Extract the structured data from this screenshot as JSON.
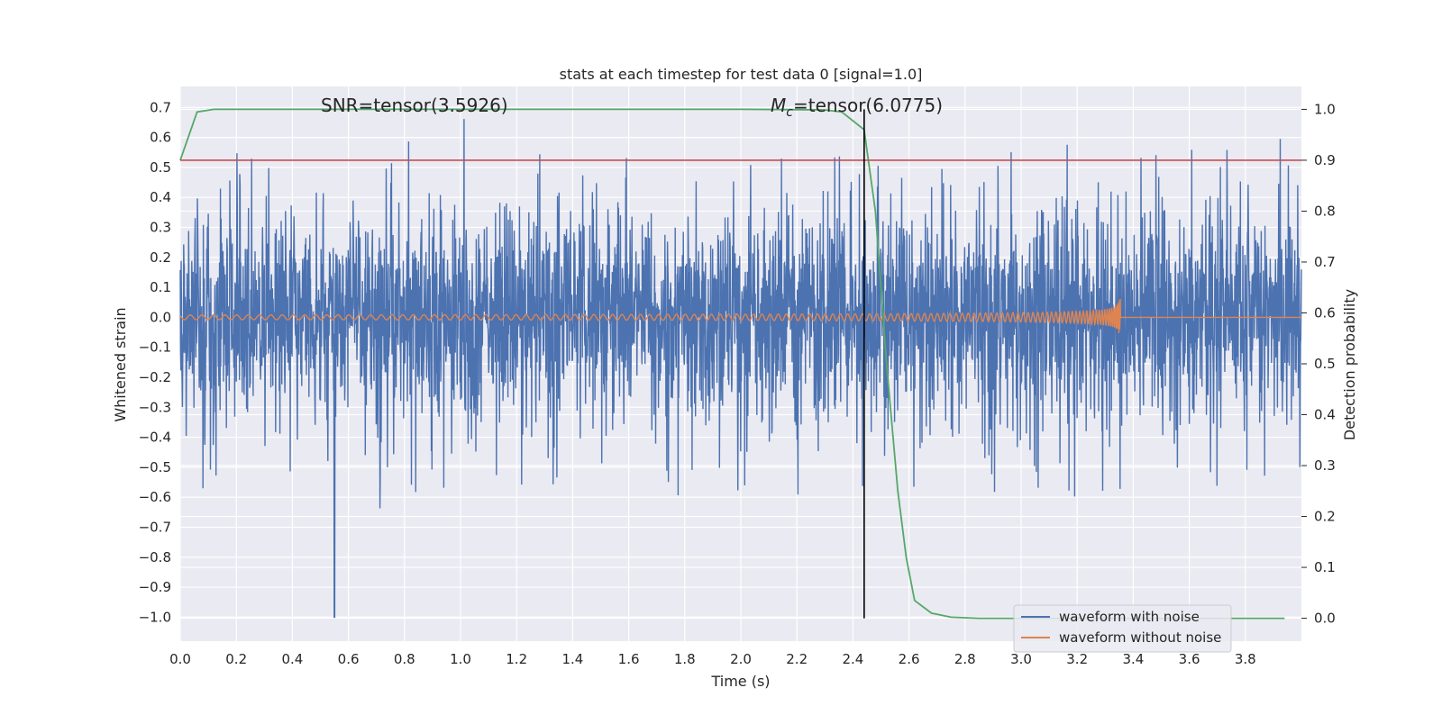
{
  "chart_data": {
    "type": "line",
    "title": "stats at each timestep for test data 0 [signal=1.0]",
    "xlabel": "Time (s)",
    "ylabel": "Whitened strain",
    "ylabel_right": "Detection probability",
    "xlim": [
      0.0,
      4.0
    ],
    "ylim": [
      -1.08,
      0.77
    ],
    "ylim_right": [
      -0.045,
      1.045
    ],
    "x_ticks": [
      "0.0",
      "0.2",
      "0.4",
      "0.6",
      "0.8",
      "1.0",
      "1.2",
      "1.4",
      "1.6",
      "1.8",
      "2.0",
      "2.2",
      "2.4",
      "2.6",
      "2.8",
      "3.0",
      "3.2",
      "3.4",
      "3.6",
      "3.8"
    ],
    "y_ticks": [
      "0.7",
      "0.6",
      "0.5",
      "0.4",
      "0.3",
      "0.2",
      "0.1",
      "0.0",
      "−0.1",
      "−0.2",
      "−0.3",
      "−0.4",
      "−0.5",
      "−0.6",
      "−0.7",
      "−0.8",
      "−0.9",
      "−1.0"
    ],
    "y_ticks_right": [
      "1.0",
      "0.9",
      "0.8",
      "0.7",
      "0.6",
      "0.5",
      "0.4",
      "0.3",
      "0.2",
      "0.1",
      "0.0"
    ],
    "annotations": {
      "snr": "SNR=tensor(3.5926)",
      "mc_symbol": "M",
      "mc_subscript": "c",
      "mc_value": "=tensor(6.0775)"
    },
    "legend": [
      "waveform with noise",
      "waveform without noise"
    ],
    "legend_position": "lower-right",
    "grid": true,
    "threshold_probability": 0.9,
    "merger_time": 2.44,
    "noise_extrema": {
      "min": -1.0,
      "min_time": 0.55,
      "max": 0.69
    },
    "colors": {
      "noise": "#4c72b0",
      "signal": "#dd8452",
      "probability": "#55a868",
      "threshold": "#c44e52",
      "marker": "#000000",
      "axes_bg": "#eaeaf2",
      "grid": "#ffffff"
    },
    "detection_probability": {
      "x": [
        0.0,
        0.06,
        0.12,
        0.2,
        0.5,
        1.0,
        1.5,
        2.0,
        2.3,
        2.36,
        2.44,
        2.48,
        2.52,
        2.56,
        2.59,
        2.62,
        2.68,
        2.75,
        2.85,
        3.0,
        3.5,
        3.94
      ],
      "y": [
        0.9,
        0.995,
        1.0,
        1.0,
        1.0,
        1.0,
        1.0,
        1.0,
        0.999,
        0.995,
        0.96,
        0.8,
        0.5,
        0.25,
        0.12,
        0.035,
        0.01,
        0.002,
        0.0,
        0.0,
        0.0,
        0.0
      ]
    }
  }
}
